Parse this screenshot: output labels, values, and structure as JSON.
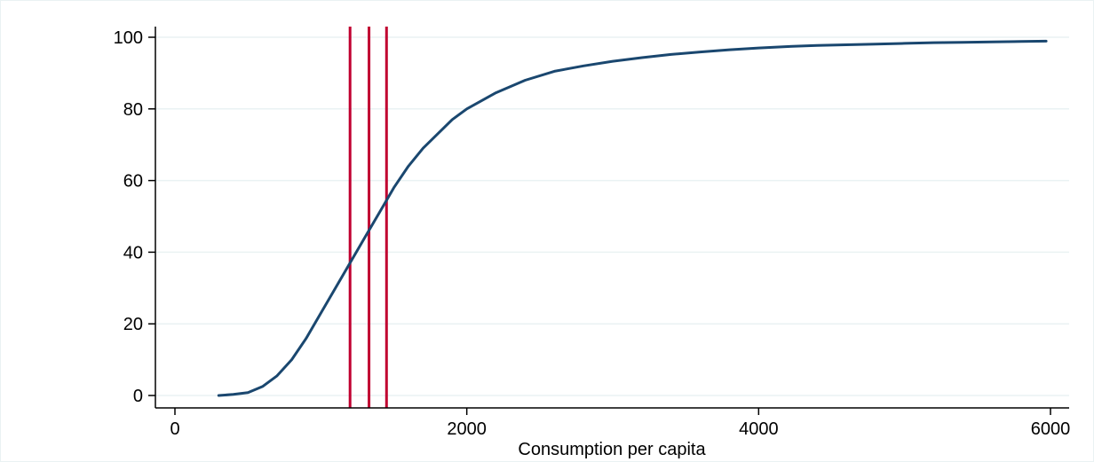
{
  "chart_data": {
    "type": "line",
    "title": "",
    "xlabel": "Consumption per capita",
    "ylabel": "",
    "xlim": [
      0,
      6000
    ],
    "ylim": [
      0,
      100
    ],
    "xticks": [
      0,
      2000,
      4000,
      6000
    ],
    "yticks": [
      0,
      20,
      40,
      60,
      80,
      100
    ],
    "grid": "horizontal",
    "legend": "none",
    "series": [
      {
        "type": "line",
        "color": "#1a476f",
        "x": [
          300,
          400,
          500,
          600,
          700,
          800,
          900,
          1000,
          1100,
          1200,
          1300,
          1400,
          1500,
          1600,
          1700,
          1800,
          1900,
          2000,
          2200,
          2400,
          2600,
          2800,
          3000,
          3200,
          3400,
          3600,
          3800,
          4000,
          4200,
          4400,
          4600,
          4800,
          5000,
          5200,
          5400,
          5600,
          5800,
          5970
        ],
        "y": [
          0,
          0.3,
          0.8,
          2.5,
          5.5,
          10,
          16,
          23,
          30,
          37,
          44,
          51,
          58,
          64,
          69,
          73,
          77,
          80,
          84.5,
          88,
          90.5,
          92,
          93.3,
          94.3,
          95.2,
          95.9,
          96.5,
          97,
          97.4,
          97.7,
          97.9,
          98.1,
          98.3,
          98.5,
          98.6,
          98.7,
          98.8,
          98.9
        ]
      }
    ],
    "reference_lines": [
      {
        "axis": "x",
        "value": 1200,
        "color": "#c00030"
      },
      {
        "axis": "x",
        "value": 1330,
        "color": "#c00030"
      },
      {
        "axis": "x",
        "value": 1450,
        "color": "#c00030"
      }
    ]
  },
  "colors": {
    "background": "#ffffff",
    "plot_background": "#ffffff",
    "grid": "#eaf2f3",
    "axis": "#000000",
    "series": "#1a476f",
    "reference": "#c00030"
  }
}
